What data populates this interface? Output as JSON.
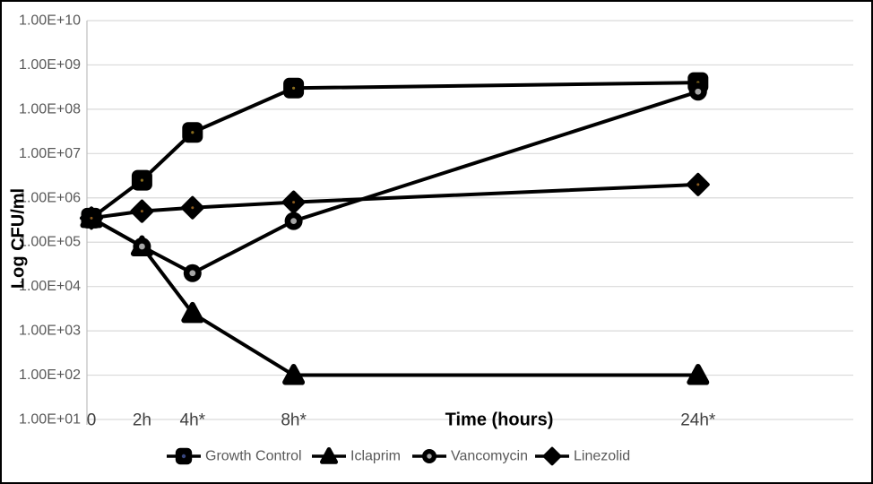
{
  "chart_data": {
    "type": "line",
    "title": "",
    "xlabel": "Time (hours)",
    "ylabel": "Log CFU/ml",
    "y_scale": "log10",
    "y_log_exponent_range": [
      1,
      10
    ],
    "y_tick_labels": [
      "1.00E+01",
      "1.00E+02",
      "1.00E+03",
      "1.00E+04",
      "1.00E+05",
      "1.00E+06",
      "1.00E+07",
      "1.00E+08",
      "1.00E+09",
      "1.00E+10"
    ],
    "x_hours": [
      0,
      2,
      4,
      8,
      24
    ],
    "x_tick_labels": [
      "0",
      "2h",
      "4h*",
      "8h*",
      "24h*"
    ],
    "grid": true,
    "legend_position": "bottom",
    "series": [
      {
        "name": "Growth Control",
        "marker": "square",
        "line_color": "#000000",
        "values_cfu_per_ml": [
          350000,
          2500000,
          30000000,
          300000000,
          400000000
        ]
      },
      {
        "name": "Iclaprim",
        "marker": "triangle",
        "line_color": "#000000",
        "values_cfu_per_ml": [
          350000,
          80000,
          2500,
          100,
          100
        ]
      },
      {
        "name": "Vancomycin",
        "marker": "circle",
        "line_color": "#000000",
        "values_cfu_per_ml": [
          350000,
          80000,
          20000,
          300000,
          250000000
        ]
      },
      {
        "name": "Linezolid",
        "marker": "diamond",
        "line_color": "#000000",
        "values_cfu_per_ml": [
          350000,
          500000,
          600000,
          800000,
          2000000
        ]
      }
    ],
    "colors": {
      "series_line": "#000000",
      "gridline": "#d9d9d9",
      "axis_line": "#bfbfbf",
      "y_tick_text": "#595959",
      "x_tick_text": "#3f3f3f",
      "legend_text": "#595959",
      "axis_title_text": "#000000",
      "circle_inner_dot": "#a6a6a6",
      "square_inner_dot": "#8a6d1e",
      "diamond_inner_dot": "#8a5a1e",
      "legend_square_inner_dot": "#39477f"
    }
  }
}
